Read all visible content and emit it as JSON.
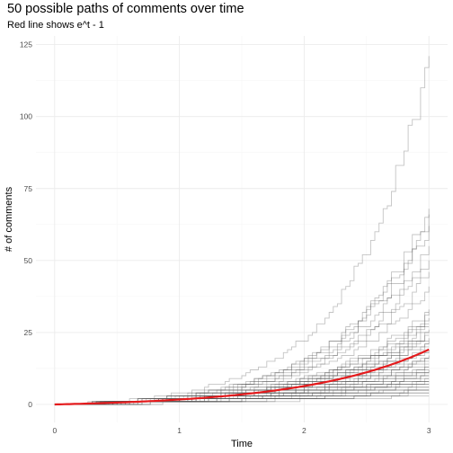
{
  "chart_data": {
    "type": "line",
    "title": "50 possible paths of comments over time",
    "subtitle": "Red line shows e^t - 1",
    "xlabel": "Time",
    "ylabel": "# of comments",
    "xlim": [
      0,
      3
    ],
    "ylim": [
      0,
      125
    ],
    "x_ticks": [
      0,
      1,
      2,
      3
    ],
    "y_ticks": [
      0,
      25,
      50,
      75,
      100,
      125
    ],
    "grid": true,
    "n_paths": 50,
    "paths_final_values": [
      121,
      68,
      66,
      62,
      55,
      50,
      46,
      41,
      33,
      31,
      30,
      28,
      27,
      26,
      25,
      24,
      23,
      22,
      21,
      20,
      19,
      18,
      17,
      16,
      16,
      15,
      14,
      13,
      13,
      12,
      12,
      11,
      11,
      10,
      10,
      9,
      9,
      8,
      8,
      8,
      7,
      7,
      6,
      6,
      5,
      5,
      5,
      4,
      4,
      3
    ],
    "reference_curve": {
      "label": "e^t - 1",
      "color": "#e41a1c"
    },
    "path_color": "#555555"
  }
}
